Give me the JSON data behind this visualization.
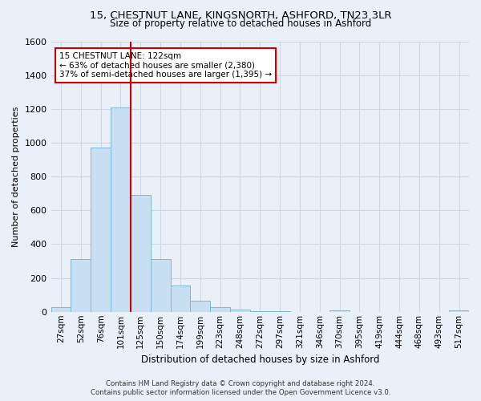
{
  "title_line1": "15, CHESTNUT LANE, KINGSNORTH, ASHFORD, TN23 3LR",
  "title_line2": "Size of property relative to detached houses in Ashford",
  "xlabel": "Distribution of detached houses by size in Ashford",
  "ylabel": "Number of detached properties",
  "bar_color": "#c8dff2",
  "bar_edge_color": "#7eb5d6",
  "categories": [
    "27sqm",
    "52sqm",
    "76sqm",
    "101sqm",
    "125sqm",
    "150sqm",
    "174sqm",
    "199sqm",
    "223sqm",
    "248sqm",
    "272sqm",
    "297sqm",
    "321sqm",
    "346sqm",
    "370sqm",
    "395sqm",
    "419sqm",
    "444sqm",
    "468sqm",
    "493sqm",
    "517sqm"
  ],
  "values": [
    25,
    310,
    970,
    1210,
    690,
    310,
    155,
    65,
    25,
    15,
    5,
    5,
    0,
    0,
    10,
    0,
    0,
    0,
    0,
    0,
    10
  ],
  "ylim": [
    0,
    1600
  ],
  "yticks": [
    0,
    200,
    400,
    600,
    800,
    1000,
    1200,
    1400,
    1600
  ],
  "property_bar_index": 3,
  "annotation_title": "15 CHESTNUT LANE: 122sqm",
  "annotation_line1": "← 63% of detached houses are smaller (2,380)",
  "annotation_line2": "37% of semi-detached houses are larger (1,395) →",
  "annotation_box_color": "#ffffff",
  "annotation_box_edge": "#cc0000",
  "vline_color": "#cc0000",
  "grid_color": "#d0d8e4",
  "background_color": "#eaf0f8",
  "footer_line1": "Contains HM Land Registry data © Crown copyright and database right 2024.",
  "footer_line2": "Contains public sector information licensed under the Open Government Licence v3.0."
}
